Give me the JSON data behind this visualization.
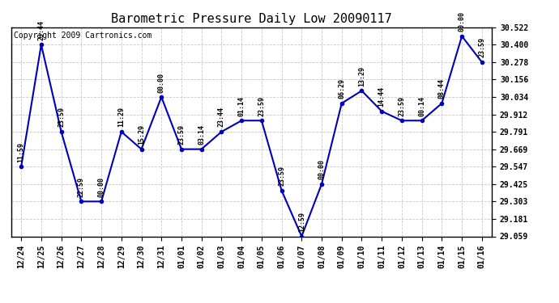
{
  "title": "Barometric Pressure Daily Low 20090117",
  "copyright": "Copyright 2009 Cartronics.com",
  "x_labels": [
    "12/24",
    "12/25",
    "12/26",
    "12/27",
    "12/28",
    "12/29",
    "12/30",
    "12/31",
    "01/01",
    "01/02",
    "01/03",
    "01/04",
    "01/05",
    "01/06",
    "01/07",
    "01/08",
    "01/09",
    "01/10",
    "01/11",
    "01/12",
    "01/13",
    "01/14",
    "01/15",
    "01/16"
  ],
  "y_values": [
    29.547,
    30.4,
    29.791,
    29.303,
    29.303,
    29.791,
    29.669,
    30.034,
    29.669,
    29.669,
    29.791,
    29.869,
    29.869,
    29.38,
    29.059,
    29.425,
    29.99,
    30.078,
    29.934,
    29.869,
    29.869,
    29.99,
    30.46,
    30.278
  ],
  "annotations": [
    "11:59",
    "23:44",
    "23:59",
    "22:59",
    "00:00",
    "11:29",
    "15:29",
    "00:00",
    "23:59",
    "03:14",
    "23:44",
    "01:14",
    "23:59",
    "23:59",
    "12:59",
    "00:00",
    "06:29",
    "13:29",
    "14:44",
    "23:59",
    "00:14",
    "08:44",
    "00:00",
    "23:59"
  ],
  "y_ticks": [
    29.059,
    29.181,
    29.303,
    29.425,
    29.547,
    29.669,
    29.791,
    29.912,
    30.034,
    30.156,
    30.278,
    30.4,
    30.522
  ],
  "ylim_min": 29.059,
  "ylim_max": 30.522,
  "line_color": "#0000bb",
  "marker_color": "#0000bb",
  "bg_color": "#ffffff",
  "grid_color": "#bbbbbb",
  "title_fontsize": 11,
  "annotation_fontsize": 6.0,
  "copyright_fontsize": 7,
  "tick_fontsize": 7,
  "figwidth": 6.9,
  "figheight": 3.75,
  "dpi": 100
}
